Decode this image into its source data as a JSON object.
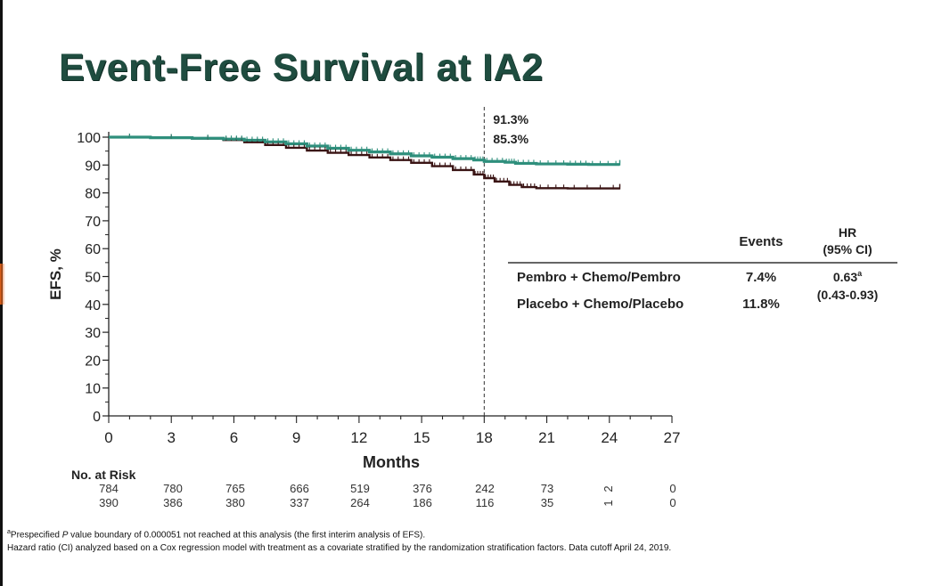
{
  "title": "Event-Free Survival at IA2",
  "chart_data": {
    "type": "line",
    "title": "Event-Free Survival at IA2",
    "xlabel": "Months",
    "ylabel": "EFS, %",
    "xlim": [
      0,
      27
    ],
    "ylim": [
      0,
      100
    ],
    "xticks": [
      "0",
      "3",
      "6",
      "9",
      "12",
      "15",
      "18",
      "21",
      "24",
      "27"
    ],
    "yticks": [
      "0",
      "10",
      "20",
      "30",
      "40",
      "50",
      "60",
      "70",
      "80",
      "90",
      "100"
    ],
    "reference_line": {
      "x": 18,
      "style": "dashed"
    },
    "annotations": [
      "91.3%",
      "85.3%"
    ],
    "series": [
      {
        "name": "Pembro + Chemo/Pembro",
        "color": "#2e8f7c",
        "x": [
          0,
          2,
          4,
          5.5,
          6.5,
          7.5,
          8.5,
          9.5,
          10.5,
          11.5,
          12.5,
          13.5,
          14.5,
          15.5,
          16.5,
          17.5,
          18,
          19,
          19.5,
          20.5,
          22,
          23,
          24.5
        ],
        "y": [
          100,
          99.8,
          99.6,
          99.3,
          98.9,
          98.3,
          97.6,
          96.8,
          96.0,
          95.3,
          94.7,
          94.0,
          93.3,
          92.8,
          92.3,
          91.8,
          91.3,
          91.0,
          90.6,
          90.4,
          90.3,
          90.2,
          90.2
        ]
      },
      {
        "name": "Placebo + Chemo/Placebo",
        "color": "#3a1414",
        "x": [
          0,
          2,
          4,
          5.5,
          6.5,
          7.5,
          8.5,
          9.5,
          10.5,
          11.5,
          12.5,
          13.5,
          14.5,
          15.5,
          16.5,
          17.5,
          18,
          18.5,
          19.2,
          19.8,
          20.5,
          22,
          24.5
        ],
        "y": [
          100,
          99.8,
          99.5,
          99.0,
          98.2,
          97.2,
          96.2,
          95.2,
          94.4,
          93.6,
          92.7,
          91.8,
          90.8,
          89.6,
          88.2,
          86.6,
          85.3,
          84.1,
          82.9,
          82.1,
          81.7,
          81.6,
          81.6
        ]
      }
    ],
    "table": {
      "col_events": "Events",
      "col_hr_line1": "HR",
      "col_hr_line2": "(95% CI)",
      "rows": [
        {
          "label": "Pembro + Chemo/Pembro",
          "events": "7.4%"
        },
        {
          "label": "Placebo + Chemo/Placebo",
          "events": "11.8%"
        }
      ],
      "hr_value": "0.63",
      "hr_sup": "a",
      "hr_ci": "(0.43-0.93)"
    },
    "at_risk": {
      "label": "No. at Risk",
      "rows": [
        [
          "784",
          "780",
          "765",
          "666",
          "519",
          "376",
          "242",
          "73",
          "2",
          "0"
        ],
        [
          "390",
          "386",
          "380",
          "337",
          "264",
          "186",
          "116",
          "35",
          "1",
          "0"
        ]
      ]
    }
  },
  "footnotes": {
    "line1_sup": "a",
    "line1_pre": "Prespecified ",
    "line1_p": "P",
    "line1_post": " value boundary of 0.000051 not reached at this analysis (the first interim analysis of EFS).",
    "line2": "Hazard ratio (CI) analyzed based on a Cox regression model with treatment as a covariate stratified by the randomization stratification factors. Data cutoff April 24, 2019."
  }
}
